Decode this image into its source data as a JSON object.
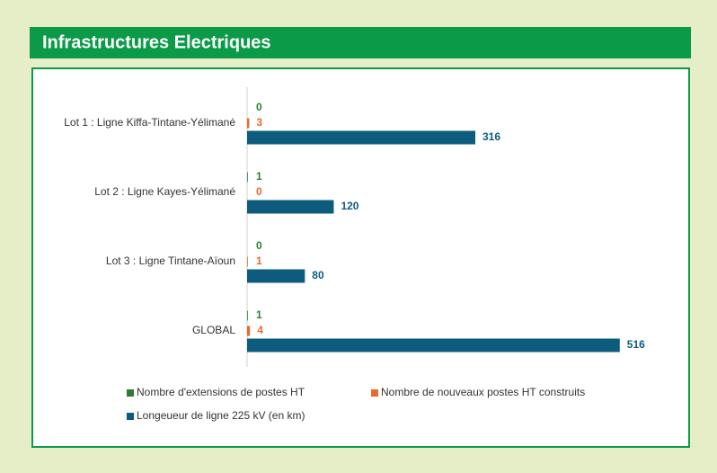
{
  "chart_data": {
    "type": "hbar",
    "title": "Infrastructures Electriques",
    "categories": [
      "Lot 1 : Ligne Kiffa-Tintane-Yélimané",
      "Lot 2 : Ligne Kayes-Yélimané",
      "Lot 3 : Ligne Tintane-Aïoun",
      "GLOBAL"
    ],
    "series": [
      {
        "name": "Nombre d'extensions de postes HT",
        "color": "#2e7d32",
        "values": [
          0,
          1,
          0,
          1
        ]
      },
      {
        "name": "Nombre de nouveaux postes HT construits",
        "color": "#ea6a2a",
        "values": [
          3,
          0,
          1,
          4
        ]
      },
      {
        "name": "Longeueur de ligne 225 kV  (en km)",
        "color": "#0d5c7d",
        "values": [
          316,
          120,
          80,
          516
        ]
      }
    ],
    "xlim": [
      0,
      520
    ]
  }
}
